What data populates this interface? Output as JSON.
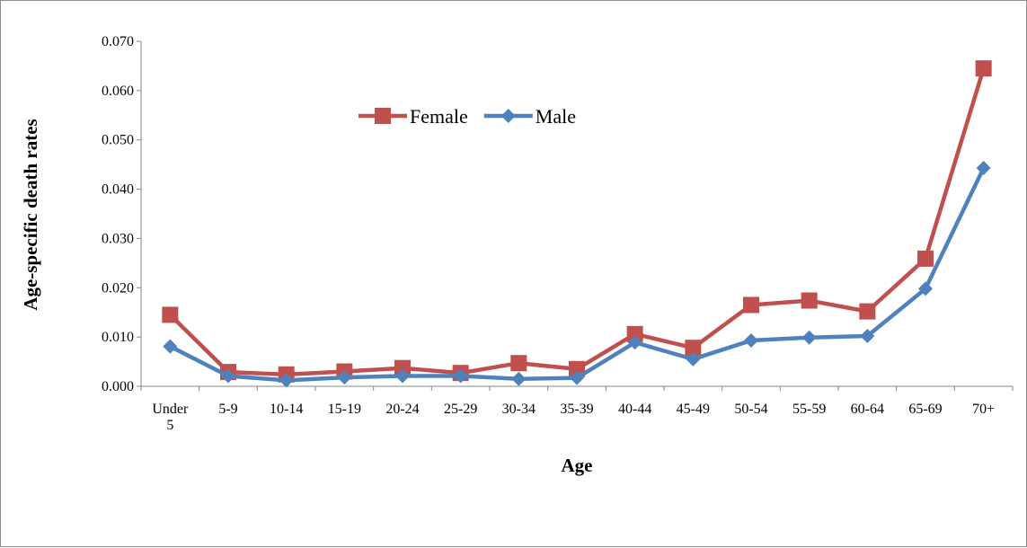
{
  "chart_data": {
    "type": "line",
    "xlabel": "Age",
    "ylabel": "Age-specific death rates",
    "categories": [
      [
        "Under",
        "5"
      ],
      [
        "5-9"
      ],
      [
        "10-14"
      ],
      [
        "15-19"
      ],
      [
        "20-24"
      ],
      [
        "25-29"
      ],
      [
        "30-34"
      ],
      [
        "35-39"
      ],
      [
        "40-44"
      ],
      [
        "45-49"
      ],
      [
        "50-54"
      ],
      [
        "55-59"
      ],
      [
        "60-64"
      ],
      [
        "65-69"
      ],
      [
        "70+"
      ]
    ],
    "ylim": [
      0,
      0.07
    ],
    "yticks": [
      "0.000",
      "0.010",
      "0.020",
      "0.030",
      "0.040",
      "0.050",
      "0.060",
      "0.070"
    ],
    "grid": false,
    "legend_position": "upper-center",
    "series": [
      {
        "name": "Female",
        "color": "#c0504d",
        "marker": "square",
        "values": [
          0.0145,
          0.0029,
          0.0024,
          0.003,
          0.0037,
          0.0027,
          0.0047,
          0.0035,
          0.0106,
          0.0078,
          0.0165,
          0.0174,
          0.0152,
          0.0259,
          0.0645
        ]
      },
      {
        "name": "Male",
        "color": "#4f81bd",
        "marker": "diamond",
        "values": [
          0.0081,
          0.0021,
          0.0012,
          0.0018,
          0.0021,
          0.0021,
          0.0015,
          0.0017,
          0.0089,
          0.0055,
          0.0093,
          0.0099,
          0.0102,
          0.0198,
          0.0443
        ]
      }
    ]
  }
}
